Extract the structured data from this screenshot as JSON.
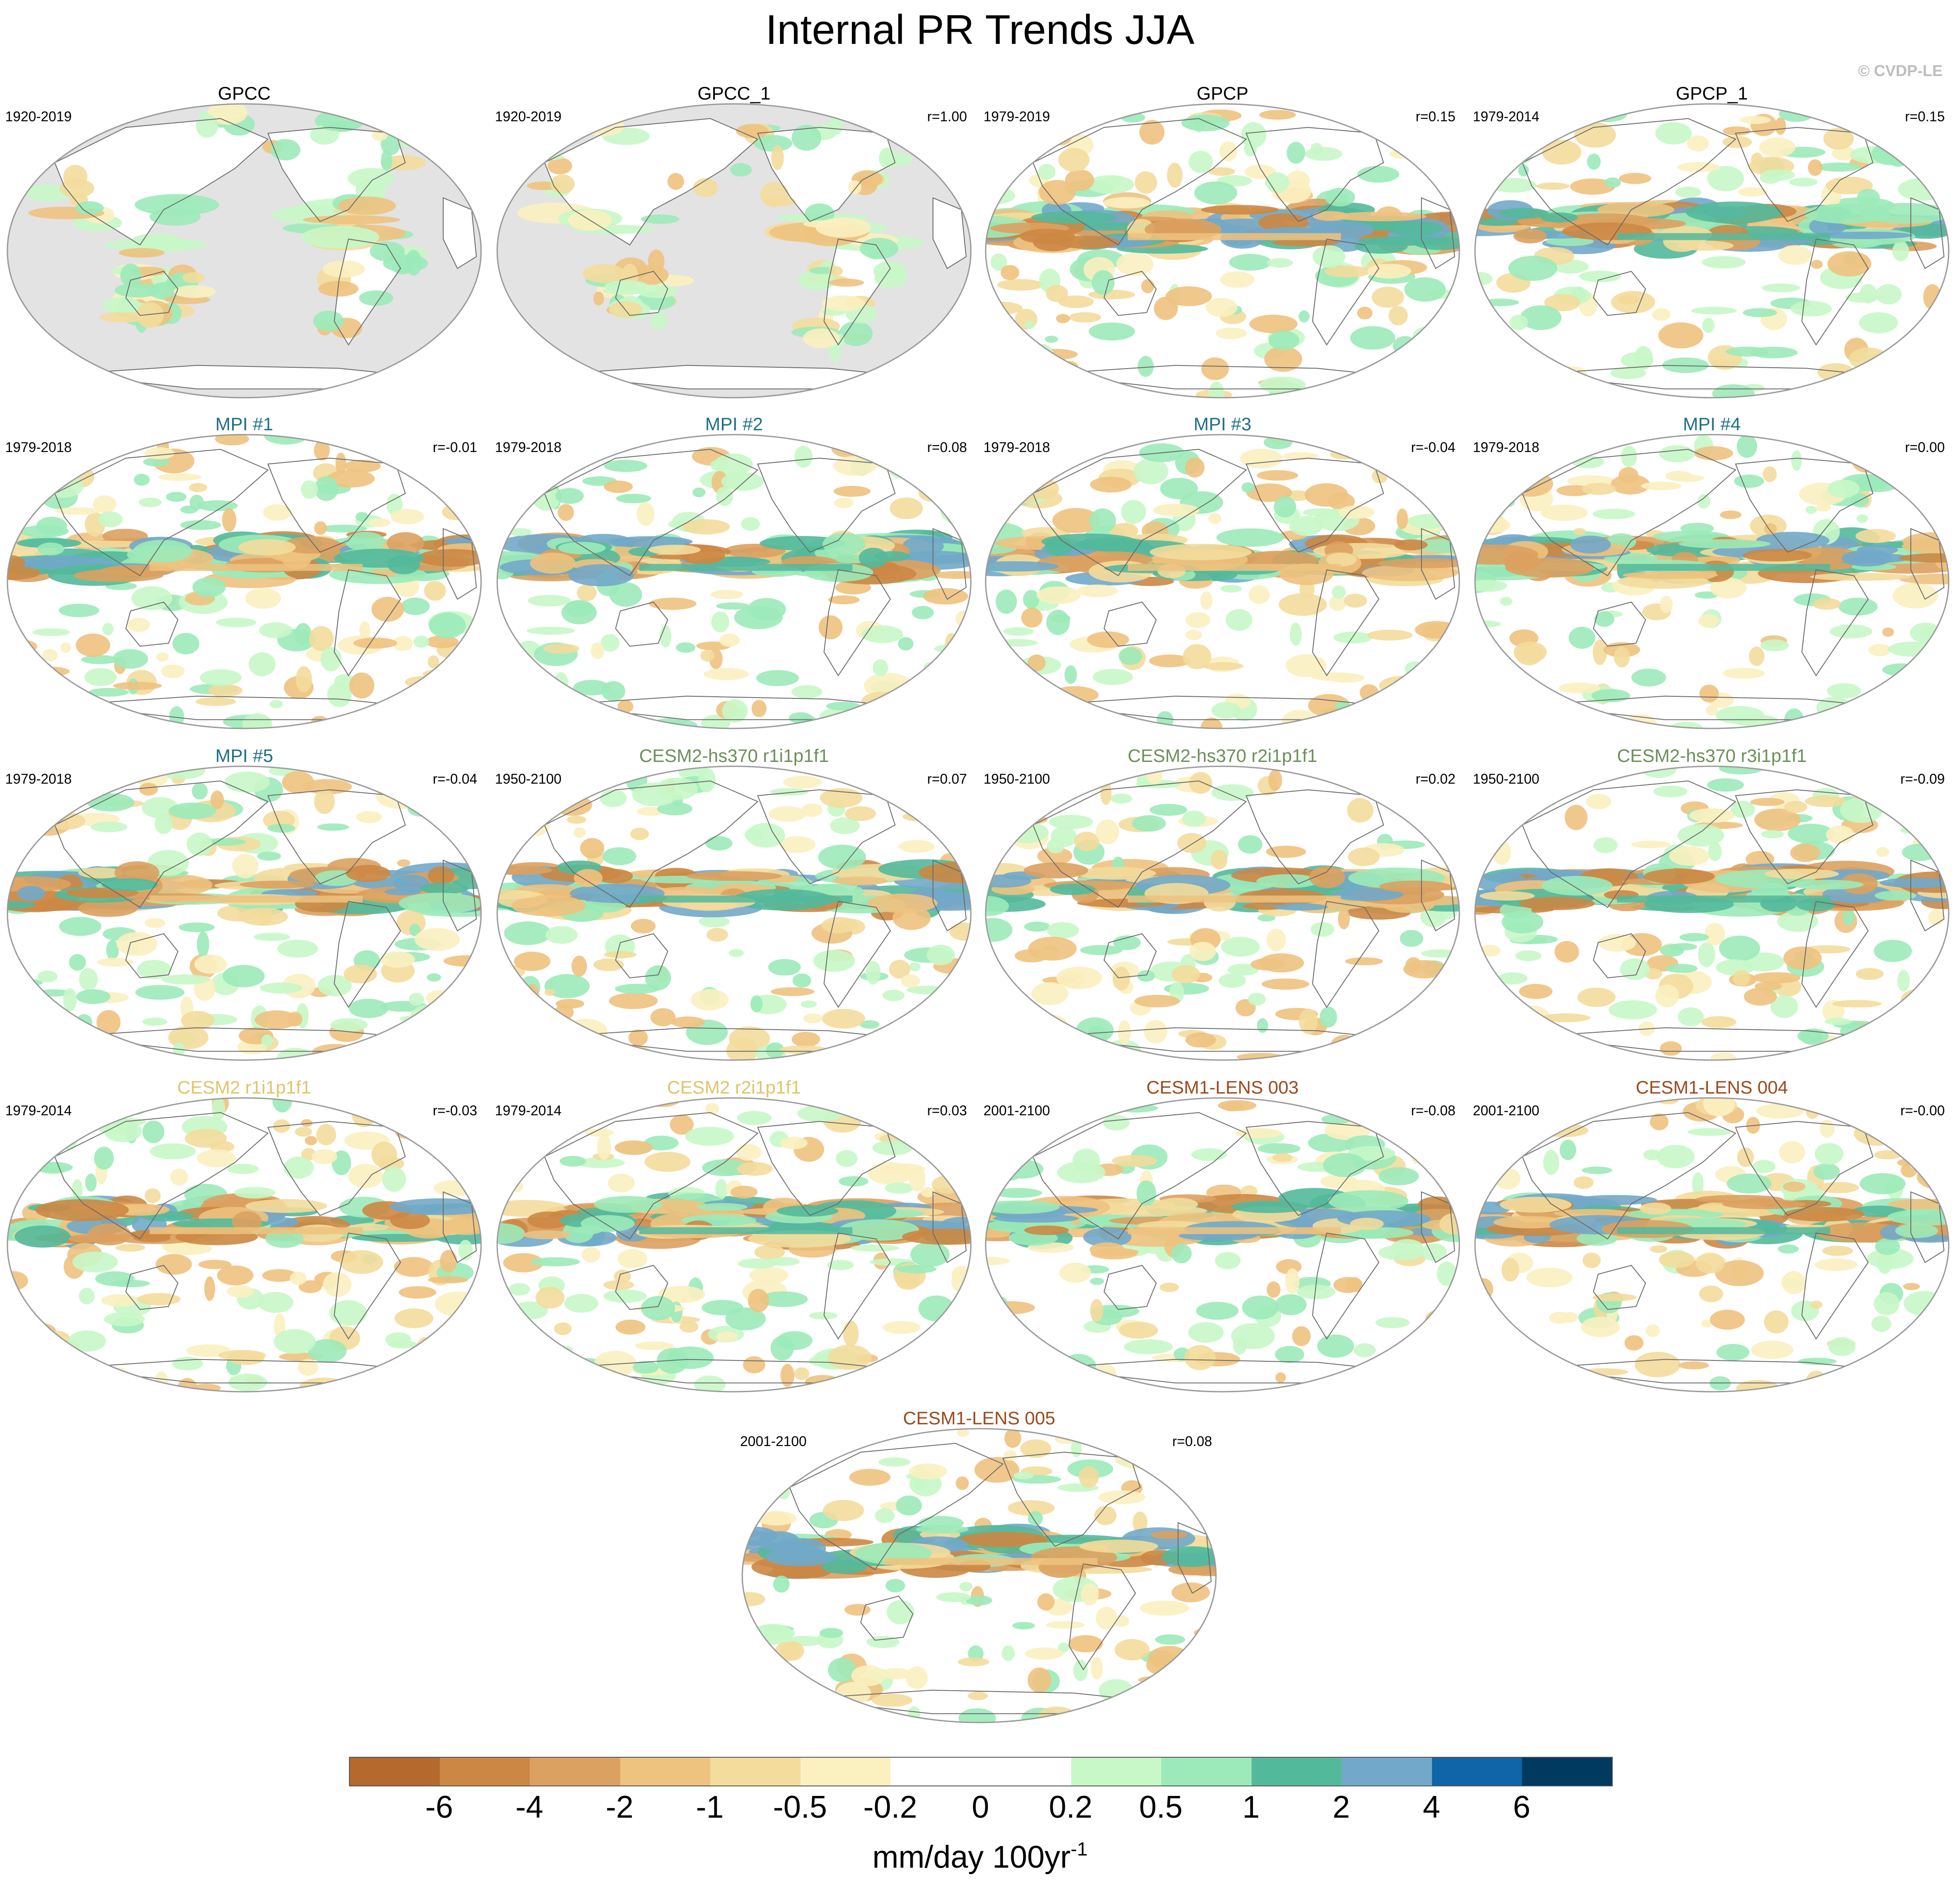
{
  "title": "Internal PR Trends JJA",
  "watermark": "© CVDP-LE",
  "panels": [
    {
      "title": "GPCC",
      "period": "1920-2019",
      "corr": "",
      "color": "#000000",
      "kind": "land"
    },
    {
      "title": "GPCC_1",
      "period": "1920-2019",
      "corr": "r=1.00",
      "color": "#000000",
      "kind": "land"
    },
    {
      "title": "GPCP",
      "period": "1979-2019",
      "corr": "r=0.15",
      "color": "#000000",
      "kind": "full"
    },
    {
      "title": "GPCP_1",
      "period": "1979-2014",
      "corr": "r=0.15",
      "color": "#000000",
      "kind": "full"
    },
    {
      "title": "MPI #1",
      "period": "1979-2018",
      "corr": "r=-0.01",
      "color": "#1f6f8b",
      "kind": "full"
    },
    {
      "title": "MPI #2",
      "period": "1979-2018",
      "corr": "r=0.08",
      "color": "#1f6f8b",
      "kind": "full"
    },
    {
      "title": "MPI #3",
      "period": "1979-2018",
      "corr": "r=-0.04",
      "color": "#1f6f8b",
      "kind": "full"
    },
    {
      "title": "MPI #4",
      "period": "1979-2018",
      "corr": "r=0.00",
      "color": "#1f6f8b",
      "kind": "full"
    },
    {
      "title": "MPI #5",
      "period": "1979-2018",
      "corr": "r=-0.04",
      "color": "#1f6f8b",
      "kind": "full"
    },
    {
      "title": "CESM2-hs370 r1i1p1f1",
      "period": "1950-2100",
      "corr": "r=0.07",
      "color": "#6c8f5a",
      "kind": "full"
    },
    {
      "title": "CESM2-hs370 r2i1p1f1",
      "period": "1950-2100",
      "corr": "r=0.02",
      "color": "#6c8f5a",
      "kind": "full"
    },
    {
      "title": "CESM2-hs370 r3i1p1f1",
      "period": "1950-2100",
      "corr": "r=-0.09",
      "color": "#6c8f5a",
      "kind": "full"
    },
    {
      "title": "CESM2 r1i1p1f1",
      "period": "1979-2014",
      "corr": "r=-0.03",
      "color": "#e0c46a",
      "kind": "full"
    },
    {
      "title": "CESM2 r2i1p1f1",
      "period": "1979-2014",
      "corr": "r=0.03",
      "color": "#e0c46a",
      "kind": "full"
    },
    {
      "title": "CESM1-LENS 003",
      "period": "2001-2100",
      "corr": "r=-0.08",
      "color": "#9a4a1e",
      "kind": "full"
    },
    {
      "title": "CESM1-LENS 004",
      "period": "2001-2100",
      "corr": "r=-0.00",
      "color": "#9a4a1e",
      "kind": "full"
    },
    {
      "title": "CESM1-LENS 005",
      "period": "2001-2100",
      "corr": "r=0.08",
      "color": "#9a4a1e",
      "kind": "full"
    }
  ],
  "colorbar": {
    "colors": [
      "#b5692d",
      "#cc8744",
      "#dba160",
      "#eec27f",
      "#f3dc9c",
      "#fbf0c0",
      "#ffffff",
      "#ffffff",
      "#c8f7c8",
      "#9ceab9",
      "#53b99b",
      "#72a8c9",
      "#0f65a8",
      "#003a5f"
    ],
    "ticks": [
      "-6",
      "-4",
      "-2",
      "-1",
      "-0.5",
      "-0.2",
      "0",
      "0.2",
      "0.5",
      "1",
      "2",
      "4",
      "6"
    ],
    "unit": "mm/day 100yr",
    "unit_exp": "-1"
  }
}
